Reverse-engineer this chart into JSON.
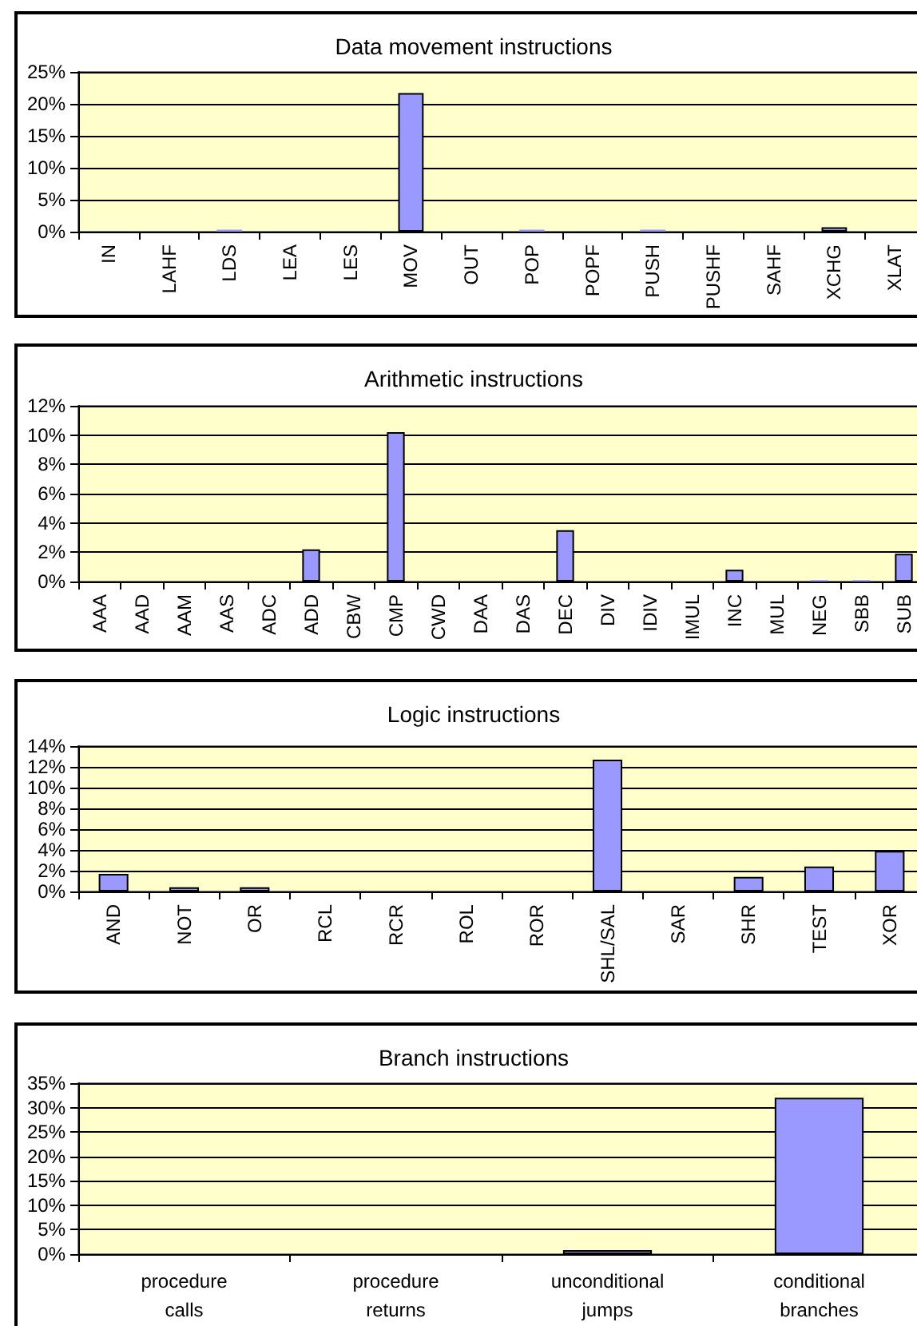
{
  "chart_data": [
    {
      "type": "bar",
      "title": "Data movement instructions",
      "categories": [
        "IN",
        "LAHF",
        "LDS",
        "LEA",
        "LES",
        "MOV",
        "OUT",
        "POP",
        "POPF",
        "PUSH",
        "PUSHF",
        "SAHF",
        "XCHG",
        "XLAT"
      ],
      "values": [
        0,
        0,
        0.3,
        0,
        0,
        21.7,
        0,
        0.3,
        0,
        0.3,
        0,
        0,
        0.7,
        0
      ],
      "color": "#9999ff",
      "ylim": [
        0,
        25
      ],
      "yticks": [
        {
          "value": 0,
          "label": "0%"
        },
        {
          "value": 5,
          "label": "5%"
        },
        {
          "value": 10,
          "label": "10%"
        },
        {
          "value": 15,
          "label": "15%"
        },
        {
          "value": 20,
          "label": "20%"
        },
        {
          "value": 25,
          "label": "25%"
        }
      ],
      "grid": "y"
    },
    {
      "type": "bar",
      "title": "Arithmetic instructions",
      "categories": [
        "AAA",
        "AAD",
        "AAM",
        "AAS",
        "ADC",
        "ADD",
        "CBW",
        "CMP",
        "CWD",
        "DAA",
        "DAS",
        "DEC",
        "DIV",
        "IDIV",
        "IMUL",
        "INC",
        "MUL",
        "NEG",
        "SBB",
        "SUB"
      ],
      "values": [
        0,
        0,
        0,
        0,
        0,
        2.2,
        0,
        10.2,
        0,
        0,
        0,
        3.5,
        0,
        0,
        0,
        0.8,
        0,
        0.1,
        0.1,
        1.9
      ],
      "color": "#9999ff",
      "ylim": [
        0,
        12
      ],
      "yticks": [
        {
          "value": 0,
          "label": "0%"
        },
        {
          "value": 2,
          "label": "2%"
        },
        {
          "value": 4,
          "label": "4%"
        },
        {
          "value": 6,
          "label": "6%"
        },
        {
          "value": 8,
          "label": "8%"
        },
        {
          "value": 10,
          "label": "10%"
        },
        {
          "value": 12,
          "label": "12%"
        }
      ],
      "grid": "y"
    },
    {
      "type": "bar",
      "title": "Logic instructions",
      "categories": [
        "AND",
        "NOT",
        "OR",
        "RCL",
        "RCR",
        "ROL",
        "ROR",
        "SHL/SAL",
        "SAR",
        "SHR",
        "TEST",
        "XOR"
      ],
      "values": [
        1.7,
        0.4,
        0.4,
        0,
        0,
        0,
        0,
        12.7,
        0,
        1.4,
        2.4,
        3.9
      ],
      "color": "#9999ff",
      "ylim": [
        0,
        14
      ],
      "yticks": [
        {
          "value": 0,
          "label": "0%"
        },
        {
          "value": 2,
          "label": "2%"
        },
        {
          "value": 4,
          "label": "4%"
        },
        {
          "value": 6,
          "label": "6%"
        },
        {
          "value": 8,
          "label": "8%"
        },
        {
          "value": 10,
          "label": "10%"
        },
        {
          "value": 12,
          "label": "12%"
        },
        {
          "value": 14,
          "label": "14%"
        }
      ],
      "grid": "y"
    },
    {
      "type": "bar",
      "title": "Branch instructions",
      "categories": [
        "procedure calls",
        "procedure returns",
        "unconditional jumps",
        "conditional branches"
      ],
      "values": [
        0,
        0,
        0.8,
        32
      ],
      "color": "#9999ff",
      "ylim": [
        0,
        35
      ],
      "yticks": [
        {
          "value": 0,
          "label": "0%"
        },
        {
          "value": 5,
          "label": "5%"
        },
        {
          "value": 10,
          "label": "10%"
        },
        {
          "value": 15,
          "label": "15%"
        },
        {
          "value": 20,
          "label": "20%"
        },
        {
          "value": 25,
          "label": "25%"
        },
        {
          "value": 30,
          "label": "30%"
        },
        {
          "value": 35,
          "label": "35%"
        }
      ],
      "grid": "y"
    }
  ]
}
